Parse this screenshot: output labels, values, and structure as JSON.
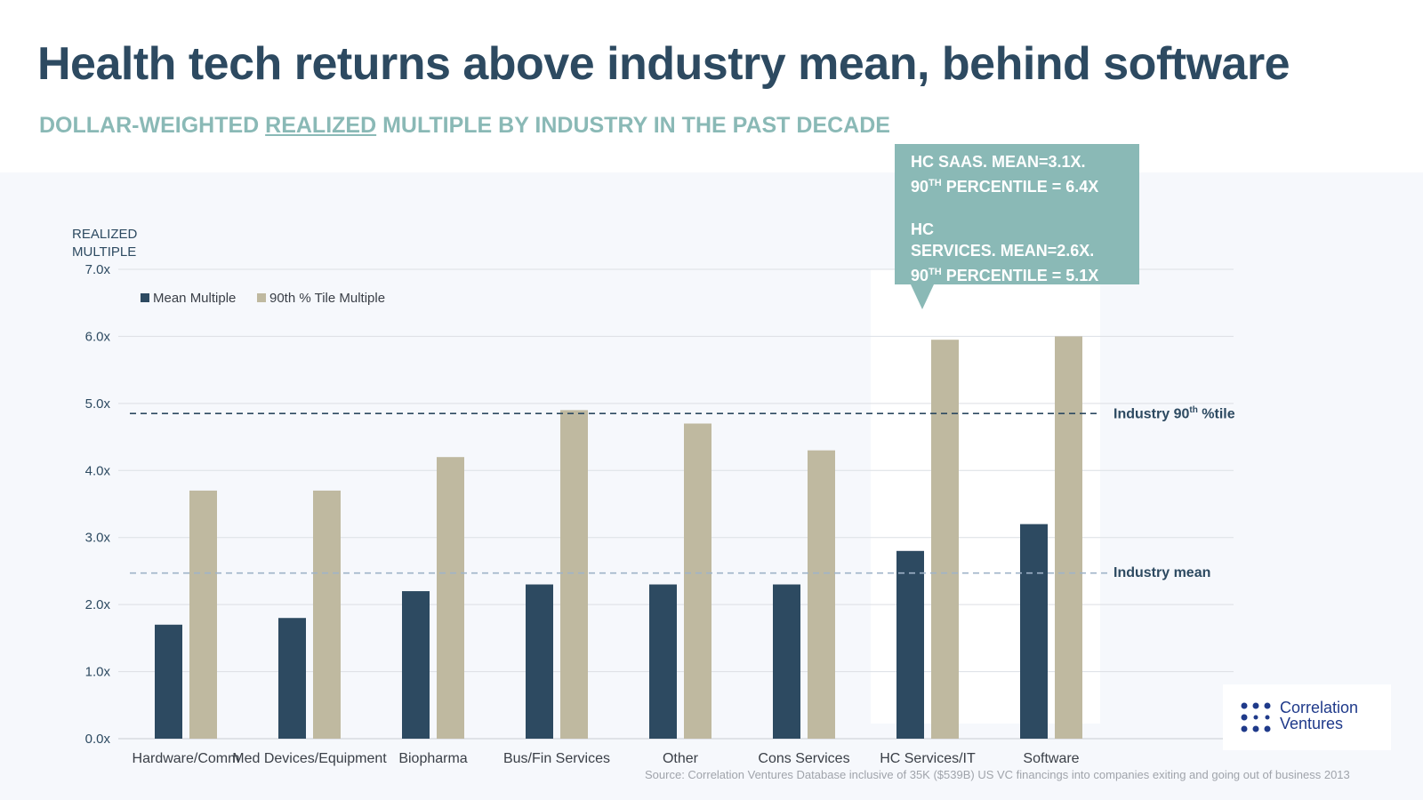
{
  "title": "Health tech returns above industry mean, behind software",
  "subtitle": {
    "before": "DOLLAR-WEIGHTED ",
    "underlined": "REALIZED",
    "after": " MULTIPLE BY INDUSTRY IN THE PAST DECADE"
  },
  "callout": {
    "line1": "HC SAAS.  MEAN=3.1X.",
    "line2_pre": "90",
    "line2_sup": "TH",
    "line2_post": " PERCENTILE = 6.4X",
    "line3": "HC",
    "line4": "SERVICES.  MEAN=2.6X.",
    "line5_pre": "90",
    "line5_sup": "TH",
    "line5_post": " PERCENTILE = 5.1X"
  },
  "reference_labels": {
    "p90_pre": "Industry 90",
    "p90_sup": "th",
    "p90_post": " %tile",
    "mean": "Industry mean"
  },
  "logo": {
    "line1": "Correlation",
    "line2": "Ventures"
  },
  "source": "Source: Correlation Ventures Database inclusive of 35K ($539B) US VC financings into companies exiting and going out of business 2013",
  "colors": {
    "mean": "#2d4a61",
    "p90": "#bfb9a0",
    "accent": "#8ab9b6",
    "mean_line": "#9fb3c8",
    "p90_line": "#2d4a61"
  },
  "chart_data": {
    "type": "bar",
    "ylabel_line1": "REALIZED",
    "ylabel_line2": "MULTIPLE",
    "ylim": [
      0,
      7
    ],
    "yticks": [
      "0.0x",
      "1.0x",
      "2.0x",
      "3.0x",
      "4.0x",
      "5.0x",
      "6.0x",
      "7.0x"
    ],
    "grid": true,
    "legend_position": "top-left",
    "categories": [
      "Hardware/Comm",
      "Med Devices/Equipment",
      "Biopharma",
      "Bus/Fin Services",
      "Other",
      "Cons Services",
      "HC Services/IT",
      "Software"
    ],
    "series": [
      {
        "name": "Mean Multiple",
        "values": [
          1.7,
          1.8,
          2.2,
          2.3,
          2.3,
          2.3,
          2.8,
          3.2
        ]
      },
      {
        "name": "90th % Tile Multiple",
        "values": [
          3.7,
          3.7,
          4.2,
          4.9,
          4.7,
          4.3,
          5.95,
          6.0
        ]
      }
    ],
    "reference_lines": {
      "industry_mean": 2.47,
      "industry_90th": 4.85
    },
    "highlighted_categories": [
      "HC Services/IT",
      "Software"
    ]
  }
}
